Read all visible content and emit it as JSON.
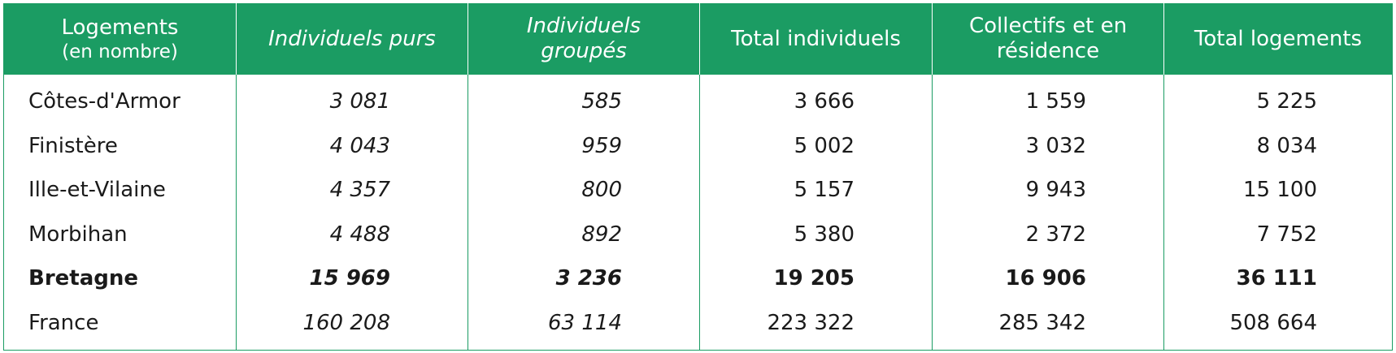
{
  "table": {
    "headers": [
      {
        "line1": "Logements",
        "line2": "(en nombre)"
      },
      {
        "line1": "Individuels purs",
        "line2": ""
      },
      {
        "line1": "Individuels",
        "line2": "groupés"
      },
      {
        "line1": "Total individuels",
        "line2": ""
      },
      {
        "line1": "Collectifs et en",
        "line2": "résidence"
      },
      {
        "line1": "Total logements",
        "line2": ""
      }
    ],
    "rows": [
      {
        "label": "Côtes-d'Armor",
        "values": [
          "3 081",
          "585",
          "3 666",
          "1 559",
          "5 225"
        ]
      },
      {
        "label": "Finistère",
        "values": [
          "4 043",
          "959",
          "5 002",
          "3 032",
          "8 034"
        ]
      },
      {
        "label": "Ille-et-Vilaine",
        "values": [
          "4 357",
          "800",
          "5 157",
          "9 943",
          "15 100"
        ]
      },
      {
        "label": "Morbihan",
        "values": [
          "4 488",
          "892",
          "5 380",
          "2 372",
          "7 752"
        ]
      },
      {
        "label": "Bretagne",
        "values": [
          "15 969",
          "3 236",
          "19 205",
          "16 906",
          "36 111"
        ]
      },
      {
        "label": "France",
        "values": [
          "160 208",
          "63 114",
          "223 322",
          "285 342",
          "508 664"
        ]
      }
    ]
  },
  "colors": {
    "header_bg": "#1b9c63",
    "header_text": "#ffffff",
    "border": "#1b9c63"
  }
}
